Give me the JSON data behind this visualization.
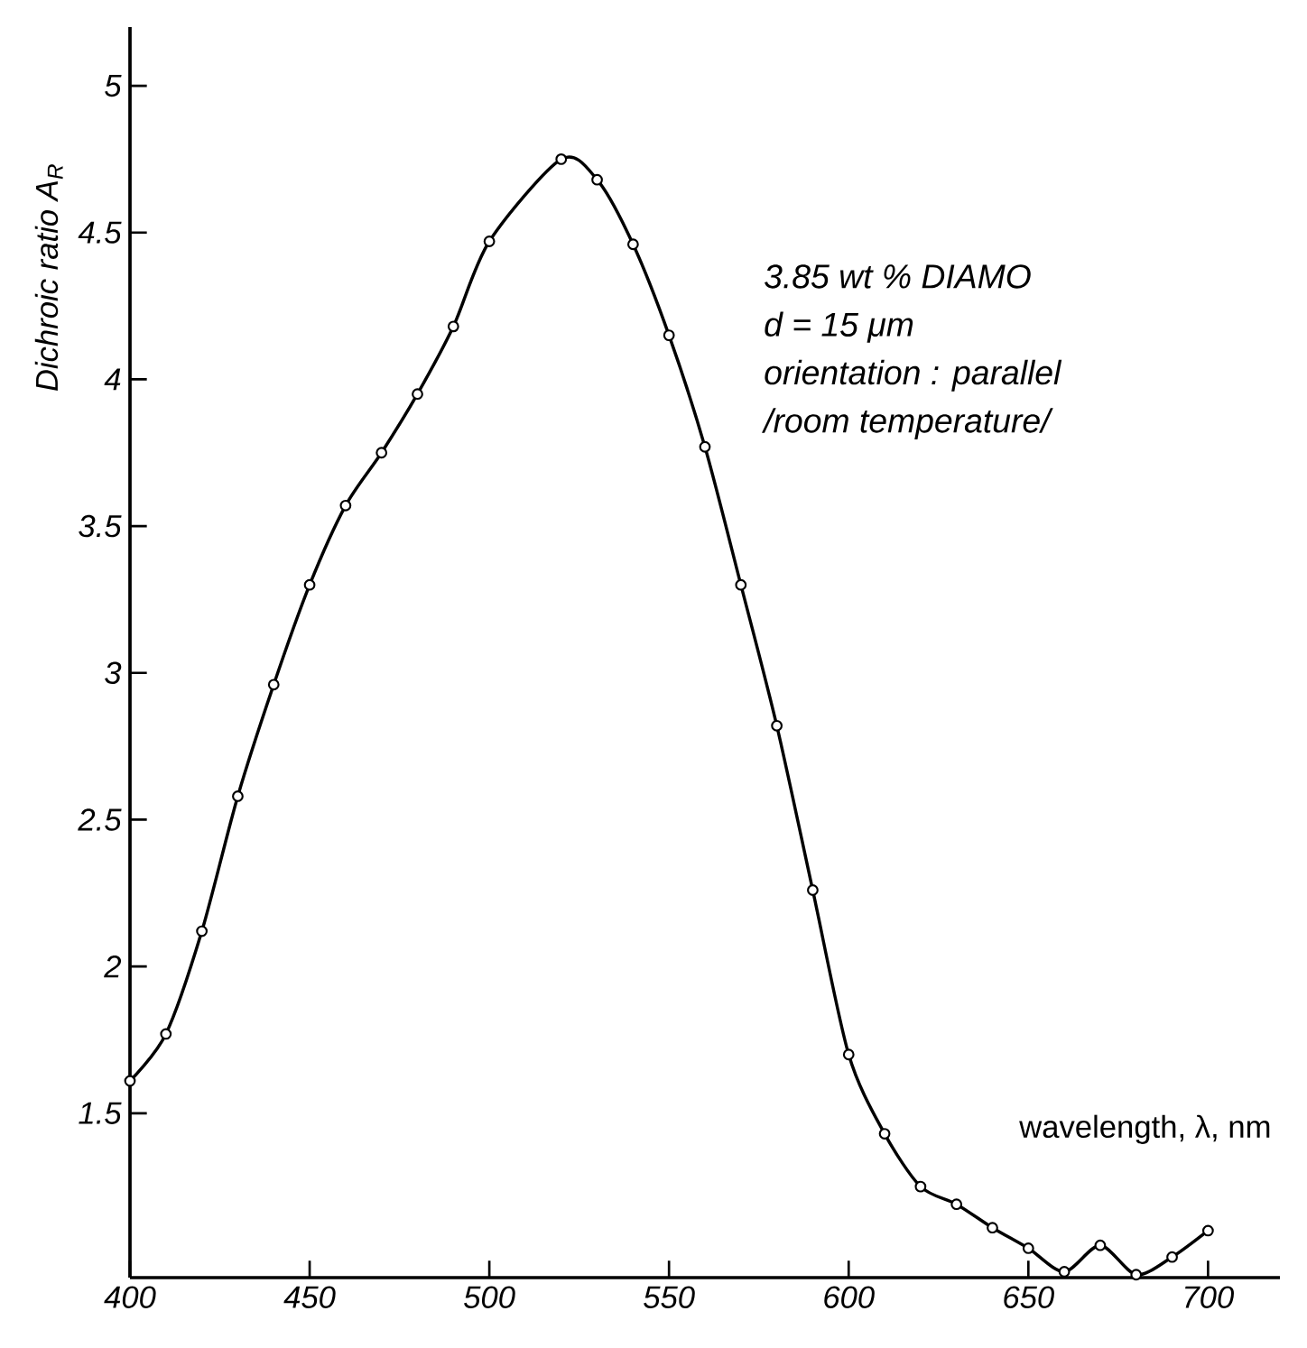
{
  "chart_data": {
    "type": "line",
    "xlabel": "wavelength, λ, nm",
    "ylabel": "Dichroic ratio  A$_{R}$",
    "annotations": [
      "3.85 wt % DIAMO",
      "d = 15 μm",
      "orientation : parallel",
      "/room temperature/"
    ],
    "x": [
      400,
      410,
      420,
      430,
      440,
      450,
      460,
      470,
      480,
      490,
      500,
      520,
      530,
      540,
      550,
      560,
      570,
      580,
      590,
      600,
      610,
      620,
      630,
      640,
      650,
      660,
      670,
      680,
      690,
      700
    ],
    "series": [
      {
        "color": "#000000",
        "values": [
          1.61,
          1.77,
          2.12,
          2.58,
          2.96,
          3.3,
          3.57,
          3.75,
          3.95,
          4.18,
          4.47,
          4.75,
          4.68,
          4.46,
          4.15,
          3.77,
          3.3,
          2.82,
          2.26,
          1.7,
          1.43,
          1.25,
          1.19,
          1.11,
          1.04,
          0.96,
          1.05,
          0.95,
          1.01,
          1.1
        ]
      }
    ],
    "xlim": [
      400,
      720
    ],
    "ylim": [
      0.94,
      5.2
    ],
    "xticks": [
      400,
      450,
      500,
      550,
      600,
      650,
      700
    ],
    "yticks": [
      1.5,
      2,
      2.5,
      3,
      3.5,
      4,
      4.5,
      5
    ],
    "marker": "circle",
    "line_style": "solid"
  }
}
